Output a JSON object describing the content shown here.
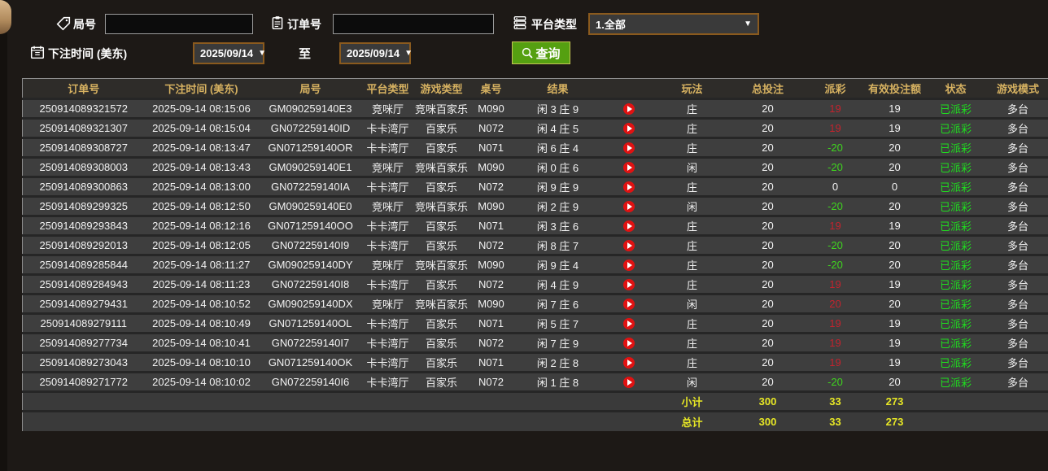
{
  "filters": {
    "round_label": "局号",
    "round_value": "",
    "order_label": "订单号",
    "order_value": "",
    "platform_label": "平台类型",
    "platform_value": "1.全部",
    "bet_time_label": "下注时间 (美东)",
    "date_from": "2025/09/14",
    "to_label": "至",
    "date_to": "2025/09/14",
    "query_label": "查询"
  },
  "glyphs": {
    "caret": "▼"
  },
  "icons": {
    "round": "tag-icon",
    "order": "clipboard-icon",
    "platform": "server-stack-icon",
    "bet_time": "calendar-icon",
    "query": "search-icon",
    "result_row": "play-circle-icon"
  },
  "colors": {
    "accent_gold": "#d7b261",
    "payout_win_red": "#c4232e",
    "payout_lose_green": "#3fd41f",
    "status_green": "#1fdd1f",
    "totals_yellow": "#e7e725",
    "query_green": "#55a011",
    "select_border_brown": "#8a5a1e",
    "row_bg": "#3e3e3e"
  },
  "table": {
    "headers": [
      "订单号",
      "下注时间 (美东)",
      "局号",
      "平台类型",
      "游戏类型",
      "桌号",
      "结果",
      "玩法",
      "总投注",
      "派彩",
      "有效投注额",
      "状态",
      "游戏模式"
    ],
    "rows": [
      {
        "order": "250914089321572",
        "time": "2025-09-14 08:15:06",
        "round": "GM090259140E3",
        "platform": "竞咪厅",
        "game": "竞咪百家乐",
        "table_no": "M090",
        "result": "闲 3 庄 9",
        "bet_side": "庄",
        "total_bet": "20",
        "payout": "19",
        "payout_color": "red",
        "valid_bet": "19",
        "status": "已派彩",
        "mode": "多台"
      },
      {
        "order": "250914089321307",
        "time": "2025-09-14 08:15:04",
        "round": "GN072259140ID",
        "platform": "卡卡湾厅",
        "game": "百家乐",
        "table_no": "N072",
        "result": "闲 4 庄 5",
        "bet_side": "庄",
        "total_bet": "20",
        "payout": "19",
        "payout_color": "red",
        "valid_bet": "19",
        "status": "已派彩",
        "mode": "多台"
      },
      {
        "order": "250914089308727",
        "time": "2025-09-14 08:13:47",
        "round": "GN071259140OR",
        "platform": "卡卡湾厅",
        "game": "百家乐",
        "table_no": "N071",
        "result": "闲 6 庄 4",
        "bet_side": "庄",
        "total_bet": "20",
        "payout": "-20",
        "payout_color": "green",
        "valid_bet": "20",
        "status": "已派彩",
        "mode": "多台"
      },
      {
        "order": "250914089308003",
        "time": "2025-09-14 08:13:43",
        "round": "GM090259140E1",
        "platform": "竞咪厅",
        "game": "竞咪百家乐",
        "table_no": "M090",
        "result": "闲 0 庄 6",
        "bet_side": "闲",
        "total_bet": "20",
        "payout": "-20",
        "payout_color": "green",
        "valid_bet": "20",
        "status": "已派彩",
        "mode": "多台"
      },
      {
        "order": "250914089300863",
        "time": "2025-09-14 08:13:00",
        "round": "GN072259140IA",
        "platform": "卡卡湾厅",
        "game": "百家乐",
        "table_no": "N072",
        "result": "闲 9 庄 9",
        "bet_side": "庄",
        "total_bet": "20",
        "payout": "0",
        "payout_color": "neutral",
        "valid_bet": "0",
        "status": "已派彩",
        "mode": "多台"
      },
      {
        "order": "250914089299325",
        "time": "2025-09-14 08:12:50",
        "round": "GM090259140E0",
        "platform": "竞咪厅",
        "game": "竞咪百家乐",
        "table_no": "M090",
        "result": "闲 2 庄 9",
        "bet_side": "闲",
        "total_bet": "20",
        "payout": "-20",
        "payout_color": "green",
        "valid_bet": "20",
        "status": "已派彩",
        "mode": "多台"
      },
      {
        "order": "250914089293843",
        "time": "2025-09-14 08:12:16",
        "round": "GN071259140OO",
        "platform": "卡卡湾厅",
        "game": "百家乐",
        "table_no": "N071",
        "result": "闲 3 庄 6",
        "bet_side": "庄",
        "total_bet": "20",
        "payout": "19",
        "payout_color": "red",
        "valid_bet": "19",
        "status": "已派彩",
        "mode": "多台"
      },
      {
        "order": "250914089292013",
        "time": "2025-09-14 08:12:05",
        "round": "GN072259140I9",
        "platform": "卡卡湾厅",
        "game": "百家乐",
        "table_no": "N072",
        "result": "闲 8 庄 7",
        "bet_side": "庄",
        "total_bet": "20",
        "payout": "-20",
        "payout_color": "green",
        "valid_bet": "20",
        "status": "已派彩",
        "mode": "多台"
      },
      {
        "order": "250914089285844",
        "time": "2025-09-14 08:11:27",
        "round": "GM090259140DY",
        "platform": "竞咪厅",
        "game": "竞咪百家乐",
        "table_no": "M090",
        "result": "闲 9 庄 4",
        "bet_side": "庄",
        "total_bet": "20",
        "payout": "-20",
        "payout_color": "green",
        "valid_bet": "20",
        "status": "已派彩",
        "mode": "多台"
      },
      {
        "order": "250914089284943",
        "time": "2025-09-14 08:11:23",
        "round": "GN072259140I8",
        "platform": "卡卡湾厅",
        "game": "百家乐",
        "table_no": "N072",
        "result": "闲 4 庄 9",
        "bet_side": "庄",
        "total_bet": "20",
        "payout": "19",
        "payout_color": "red",
        "valid_bet": "19",
        "status": "已派彩",
        "mode": "多台"
      },
      {
        "order": "250914089279431",
        "time": "2025-09-14 08:10:52",
        "round": "GM090259140DX",
        "platform": "竞咪厅",
        "game": "竞咪百家乐",
        "table_no": "M090",
        "result": "闲 7 庄 6",
        "bet_side": "闲",
        "total_bet": "20",
        "payout": "20",
        "payout_color": "red",
        "valid_bet": "20",
        "status": "已派彩",
        "mode": "多台"
      },
      {
        "order": "250914089279111",
        "time": "2025-09-14 08:10:49",
        "round": "GN071259140OL",
        "platform": "卡卡湾厅",
        "game": "百家乐",
        "table_no": "N071",
        "result": "闲 5 庄 7",
        "bet_side": "庄",
        "total_bet": "20",
        "payout": "19",
        "payout_color": "red",
        "valid_bet": "19",
        "status": "已派彩",
        "mode": "多台"
      },
      {
        "order": "250914089277734",
        "time": "2025-09-14 08:10:41",
        "round": "GN072259140I7",
        "platform": "卡卡湾厅",
        "game": "百家乐",
        "table_no": "N072",
        "result": "闲 7 庄 9",
        "bet_side": "庄",
        "total_bet": "20",
        "payout": "19",
        "payout_color": "red",
        "valid_bet": "19",
        "status": "已派彩",
        "mode": "多台"
      },
      {
        "order": "250914089273043",
        "time": "2025-09-14 08:10:10",
        "round": "GN071259140OK",
        "platform": "卡卡湾厅",
        "game": "百家乐",
        "table_no": "N071",
        "result": "闲 2 庄 8",
        "bet_side": "庄",
        "total_bet": "20",
        "payout": "19",
        "payout_color": "red",
        "valid_bet": "19",
        "status": "已派彩",
        "mode": "多台"
      },
      {
        "order": "250914089271772",
        "time": "2025-09-14 08:10:02",
        "round": "GN072259140I6",
        "platform": "卡卡湾厅",
        "game": "百家乐",
        "table_no": "N072",
        "result": "闲 1 庄 8",
        "bet_side": "闲",
        "total_bet": "20",
        "payout": "-20",
        "payout_color": "green",
        "valid_bet": "20",
        "status": "已派彩",
        "mode": "多台"
      }
    ],
    "subtotal": {
      "label": "小计",
      "total_bet": "300",
      "payout": "33",
      "valid_bet": "273"
    },
    "total": {
      "label": "总计",
      "total_bet": "300",
      "payout": "33",
      "valid_bet": "273"
    }
  }
}
